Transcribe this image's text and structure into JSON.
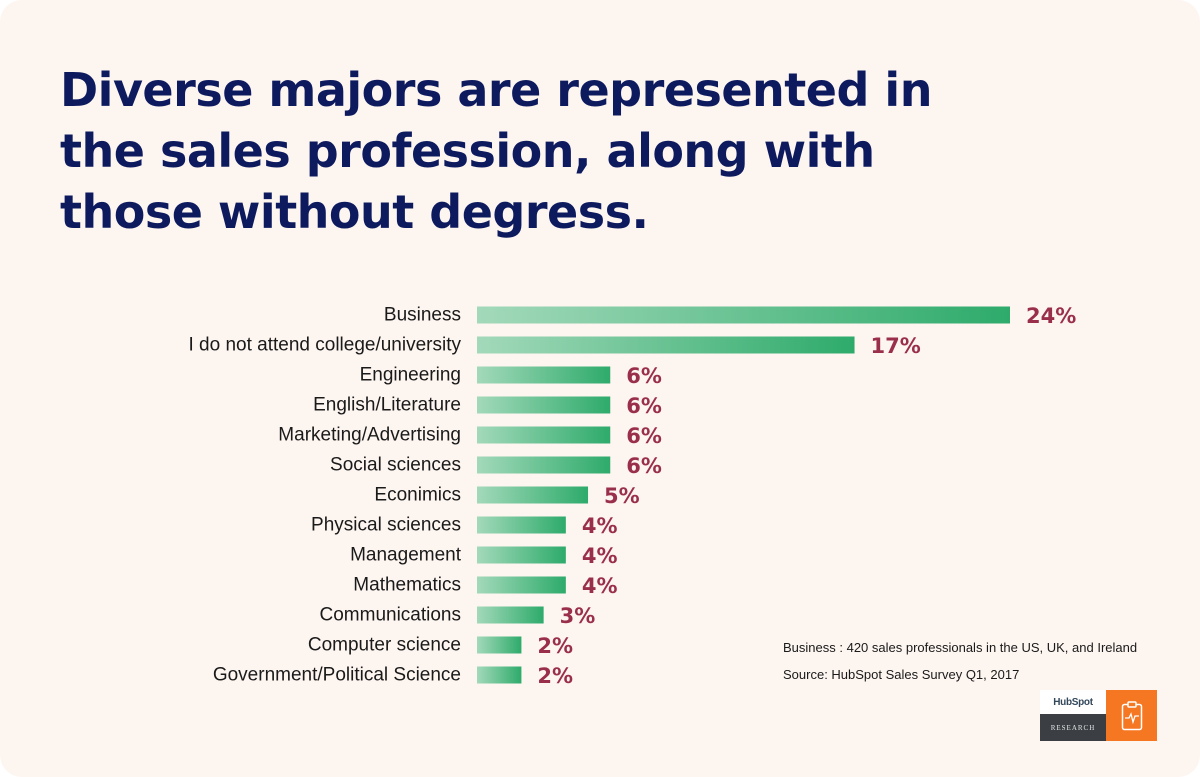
{
  "title": "Diverse majors are represented in the sales profession, along with those without degress.",
  "chart_data": {
    "type": "bar",
    "orientation": "horizontal",
    "title": "Diverse majors are represented in the sales profession, along with those without degress.",
    "categories": [
      "Business",
      "I do not attend college/university",
      "Engineering",
      "English/Literature",
      "Marketing/Advertising",
      "Social sciences",
      "Econimics",
      "Physical sciences",
      "Management",
      "Mathematics",
      "Communications",
      "Computer science",
      "Government/Political Science"
    ],
    "values": [
      24,
      17,
      6,
      6,
      6,
      6,
      5,
      4,
      4,
      4,
      3,
      2,
      2
    ],
    "value_labels": [
      "24%",
      "17%",
      "6%",
      "6%",
      "6%",
      "6%",
      "5%",
      "4%",
      "4%",
      "4%",
      "3%",
      "2%",
      "2%"
    ],
    "unit": "%",
    "xlim": [
      0,
      24
    ],
    "grid": false,
    "axes_visible": false,
    "bar_colors": {
      "start": "#a3d9ba",
      "end": "#2eab6b"
    },
    "value_label_color": "#9a2f4c"
  },
  "notes": {
    "sample": "Business : 420 sales professionals in the US, UK, and Ireland",
    "source": "Source: HubSpot Sales Survey Q1, 2017"
  },
  "logo": {
    "brand": "HubSpot",
    "label": "RESEARCH",
    "icon": "clipboard-chart-icon",
    "color": "#f57722"
  },
  "colors": {
    "background": "#fdf5f0",
    "title": "#0d1a5e"
  }
}
